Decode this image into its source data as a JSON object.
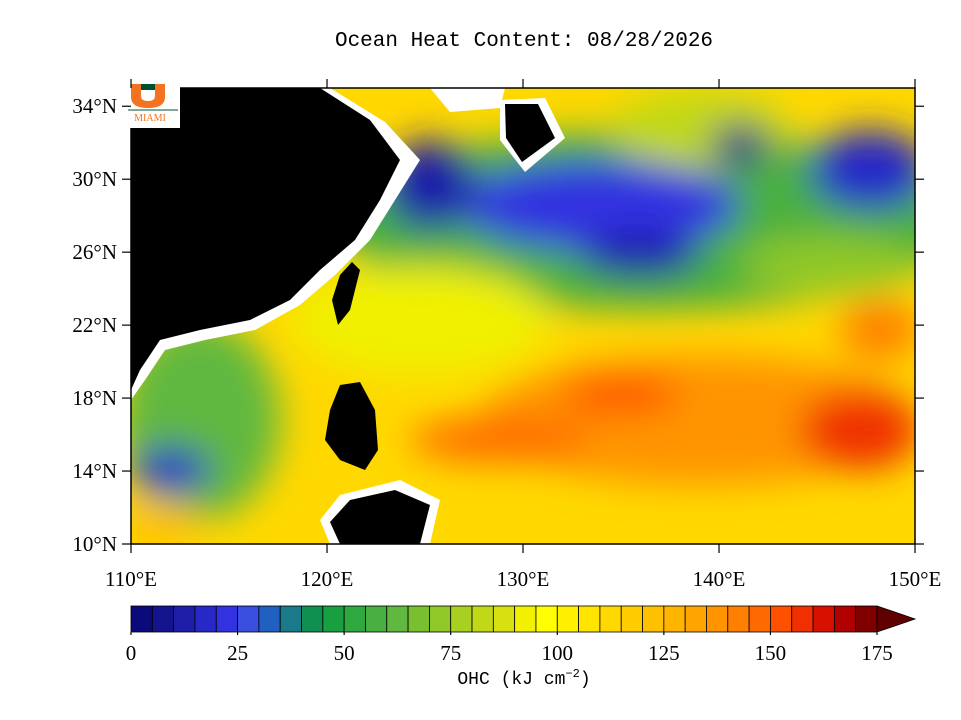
{
  "chart_data": {
    "type": "map",
    "title": "Ocean Heat Content: 08/28/2026",
    "logo_text": "MIAMI",
    "xlim": [
      110,
      150
    ],
    "ylim": [
      10,
      35
    ],
    "xticks": [
      {
        "value": 110,
        "label": "110°E"
      },
      {
        "value": 120,
        "label": "120°E"
      },
      {
        "value": 130,
        "label": "130°E"
      },
      {
        "value": 140,
        "label": "140°E"
      },
      {
        "value": 150,
        "label": "150°E"
      }
    ],
    "yticks": [
      {
        "value": 10,
        "label": "10°N"
      },
      {
        "value": 14,
        "label": "14°N"
      },
      {
        "value": 18,
        "label": "18°N"
      },
      {
        "value": 22,
        "label": "22°N"
      },
      {
        "value": 26,
        "label": "26°N"
      },
      {
        "value": 30,
        "label": "30°N"
      },
      {
        "value": 34,
        "label": "34°N"
      }
    ],
    "colorbar": {
      "lim": [
        0,
        175
      ],
      "ticks": [
        0,
        25,
        50,
        75,
        100,
        125,
        150,
        175
      ],
      "colors": [
        "#0a0a7a",
        "#14148e",
        "#1e1ea8",
        "#2828c8",
        "#3232e0",
        "#3a4ee0",
        "#2060c0",
        "#1a7a8a",
        "#109050",
        "#18a040",
        "#30a840",
        "#48b040",
        "#60b840",
        "#78c030",
        "#90c828",
        "#a8d020",
        "#c0d818",
        "#d8e010",
        "#f0f000",
        "#ffff00",
        "#fff000",
        "#ffe400",
        "#ffd800",
        "#ffcc00",
        "#ffc000",
        "#ffb400",
        "#ffa400",
        "#ff9400",
        "#ff8000",
        "#ff6a00",
        "#ff5000",
        "#f03000",
        "#d81000",
        "#b00000",
        "#800000"
      ],
      "extend_color": "#600000",
      "label": {
        "text": "OHC (kJ cm",
        "sup": "−2",
        "end": ")"
      }
    }
  }
}
